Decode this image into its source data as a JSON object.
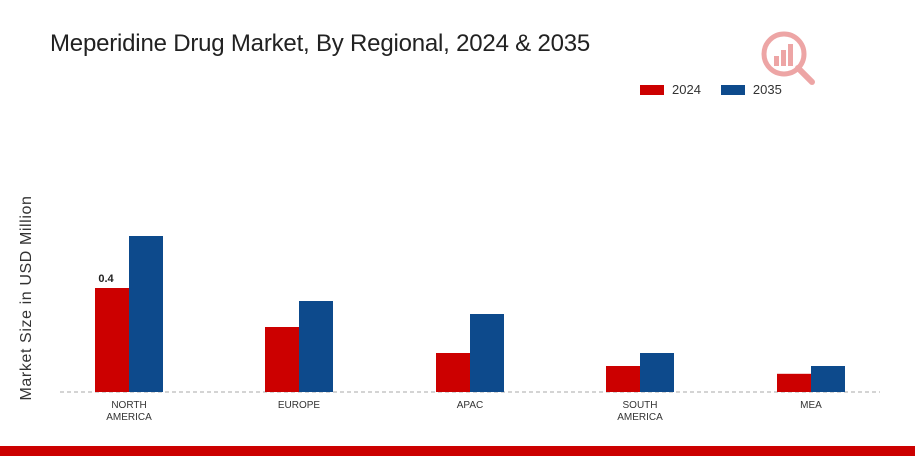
{
  "chart_data": {
    "type": "bar",
    "title": "Meperidine Drug Market, By Regional, 2024 & 2035",
    "xlabel": "",
    "ylabel": "Market Size in USD Million",
    "categories": [
      "NORTH\nAMERICA",
      "EUROPE",
      "APAC",
      "SOUTH\nAMERICA",
      "MEA"
    ],
    "series": [
      {
        "name": "2024",
        "color": "#cc0000",
        "values": [
          0.4,
          0.25,
          0.15,
          0.1,
          0.07
        ]
      },
      {
        "name": "2035",
        "color": "#0d4a8c",
        "values": [
          0.6,
          0.35,
          0.3,
          0.15,
          0.1
        ]
      }
    ],
    "data_labels": [
      {
        "series": 0,
        "index": 0,
        "text": "0.4"
      }
    ],
    "ylim": [
      0,
      0.8
    ],
    "grid": false,
    "legend_position": "top-right"
  },
  "colors": {
    "footer_band": "#cc0000",
    "baseline": "#aaaaaa",
    "watermark_icon": "#cc0000"
  },
  "watermark": {
    "icon": "bar-chart-magnifier-icon"
  }
}
